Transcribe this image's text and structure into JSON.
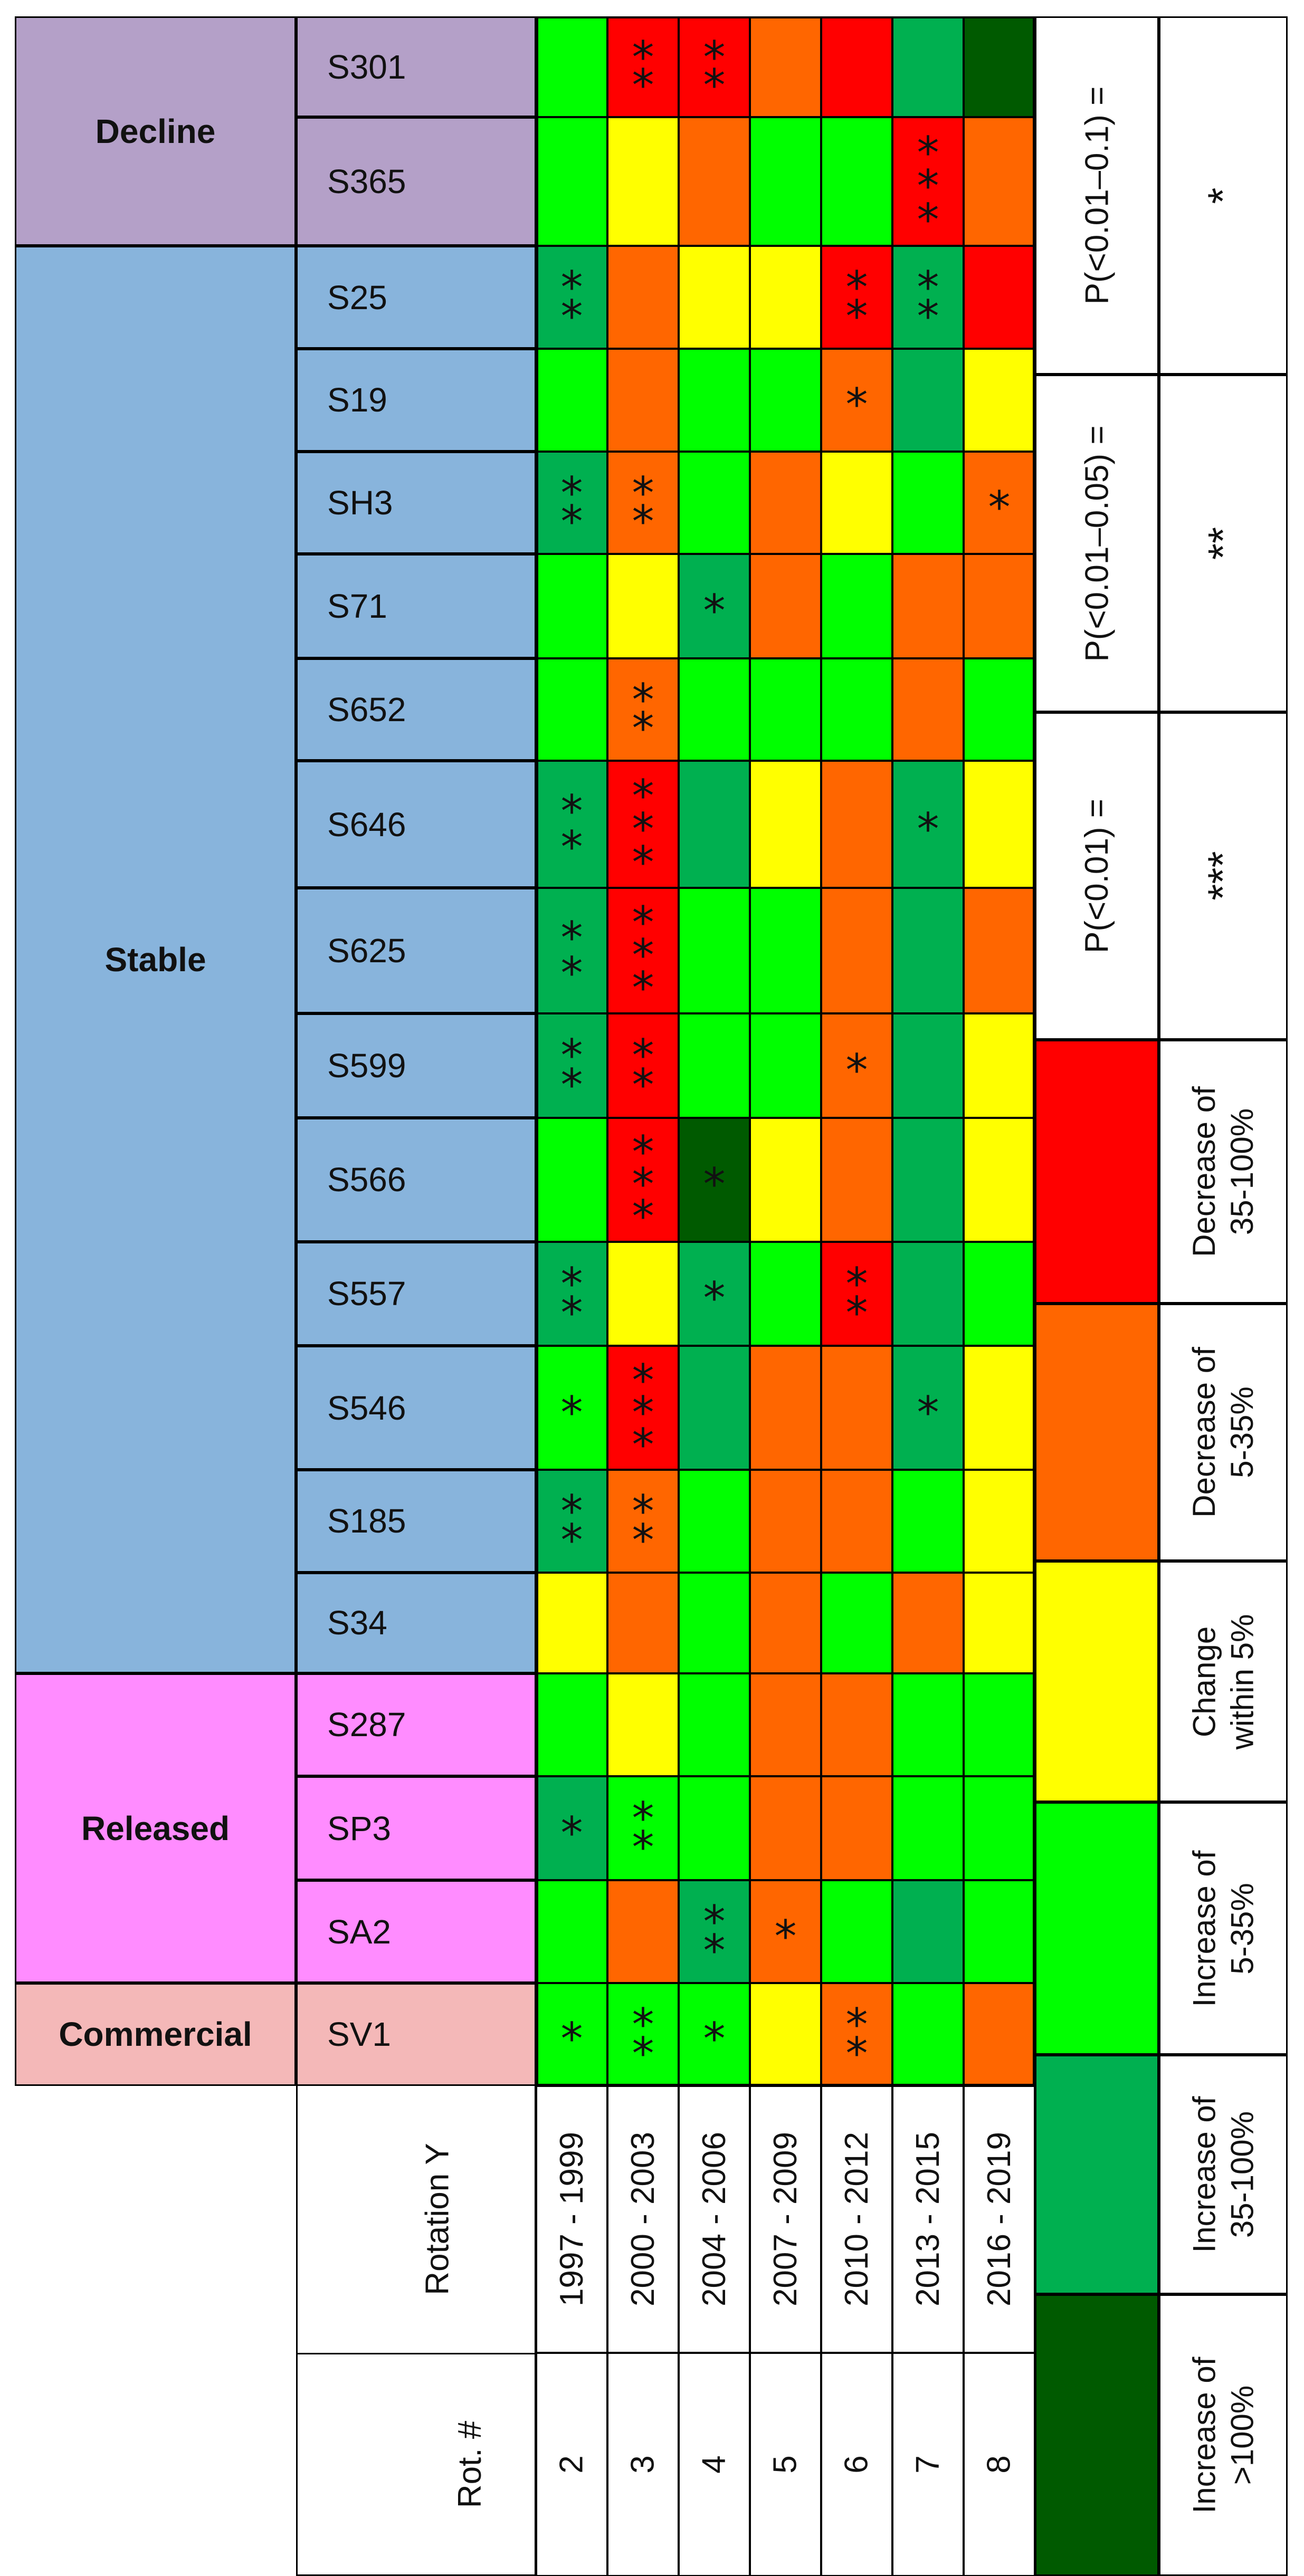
{
  "colors": {
    "large_increase": "#005a00",
    "increase_35_100": "#00b050",
    "increase_5_35": "#00ff00",
    "stable": "#ffff00",
    "decrease_5_35": "#ff6600",
    "decrease_35_100": "#ff0000",
    "decline_band": "#b4a0c8",
    "stable_band": "#88b4dc",
    "released_band": "#ff8cff",
    "commercial_band": "#f4b8b8"
  },
  "chart_data": {
    "type": "heatmap",
    "title": "",
    "categories": [
      {
        "name": "Decline",
        "rows": [
          "S301",
          "S365"
        ],
        "color_key": "decline_band"
      },
      {
        "name": "Stable",
        "rows": [
          "S25",
          "S19",
          "SH3",
          "S71",
          "S652",
          "S646",
          "S625",
          "S599",
          "S566",
          "S557",
          "S546",
          "S185",
          "S34"
        ],
        "color_key": "stable_band"
      },
      {
        "name": "Released",
        "rows": [
          "S287",
          "SP3",
          "SA2"
        ],
        "color_key": "released_band"
      },
      {
        "name": "Commercial",
        "rows": [
          "SV1"
        ],
        "color_key": "commercial_band"
      }
    ],
    "rotation_header": "Rotation Y",
    "rot_number_header": "Rot. #",
    "columns": [
      {
        "rot": "2",
        "years": "1997 - 1999"
      },
      {
        "rot": "3",
        "years": "2000 - 2003"
      },
      {
        "rot": "4",
        "years": "2004 - 2006"
      },
      {
        "rot": "5",
        "years": "2007 - 2009"
      },
      {
        "rot": "6",
        "years": "2010 - 2012"
      },
      {
        "rot": "7",
        "years": "2013 - 2015"
      },
      {
        "rot": "8",
        "years": "2016 - 2019"
      }
    ],
    "rows": [
      {
        "site": "S301",
        "cells": [
          [
            "increase_5_35",
            ""
          ],
          [
            "decrease_35_100",
            "**"
          ],
          [
            "decrease_35_100",
            "**"
          ],
          [
            "decrease_5_35",
            ""
          ],
          [
            "decrease_35_100",
            ""
          ],
          [
            "increase_35_100",
            ""
          ],
          [
            "large_increase",
            ""
          ]
        ]
      },
      {
        "site": "S365",
        "cells": [
          [
            "increase_5_35",
            ""
          ],
          [
            "stable",
            ""
          ],
          [
            "decrease_5_35",
            ""
          ],
          [
            "increase_5_35",
            ""
          ],
          [
            "increase_5_35",
            ""
          ],
          [
            "decrease_35_100",
            "***"
          ],
          [
            "decrease_5_35",
            ""
          ]
        ]
      },
      {
        "site": "S25",
        "cells": [
          [
            "increase_35_100",
            "**"
          ],
          [
            "decrease_5_35",
            ""
          ],
          [
            "stable",
            ""
          ],
          [
            "stable",
            ""
          ],
          [
            "decrease_35_100",
            "**"
          ],
          [
            "increase_35_100",
            "**"
          ],
          [
            "decrease_35_100",
            ""
          ]
        ]
      },
      {
        "site": "S19",
        "cells": [
          [
            "increase_5_35",
            ""
          ],
          [
            "decrease_5_35",
            ""
          ],
          [
            "increase_5_35",
            ""
          ],
          [
            "increase_5_35",
            ""
          ],
          [
            "decrease_5_35",
            "*"
          ],
          [
            "increase_35_100",
            ""
          ],
          [
            "stable",
            ""
          ]
        ]
      },
      {
        "site": "SH3",
        "cells": [
          [
            "increase_35_100",
            "**"
          ],
          [
            "decrease_5_35",
            "**"
          ],
          [
            "increase_5_35",
            ""
          ],
          [
            "decrease_5_35",
            ""
          ],
          [
            "stable",
            ""
          ],
          [
            "increase_5_35",
            ""
          ],
          [
            "decrease_5_35",
            "*"
          ]
        ]
      },
      {
        "site": "S71",
        "cells": [
          [
            "increase_5_35",
            ""
          ],
          [
            "stable",
            ""
          ],
          [
            "increase_35_100",
            "*"
          ],
          [
            "decrease_5_35",
            ""
          ],
          [
            "increase_5_35",
            ""
          ],
          [
            "decrease_5_35",
            ""
          ],
          [
            "decrease_5_35",
            ""
          ]
        ]
      },
      {
        "site": "S652",
        "cells": [
          [
            "increase_5_35",
            ""
          ],
          [
            "decrease_5_35",
            "**"
          ],
          [
            "increase_5_35",
            ""
          ],
          [
            "increase_5_35",
            ""
          ],
          [
            "increase_5_35",
            ""
          ],
          [
            "decrease_5_35",
            ""
          ],
          [
            "increase_5_35",
            ""
          ]
        ]
      },
      {
        "site": "S646",
        "cells": [
          [
            "increase_35_100",
            "**"
          ],
          [
            "decrease_35_100",
            "***"
          ],
          [
            "increase_35_100",
            ""
          ],
          [
            "stable",
            ""
          ],
          [
            "decrease_5_35",
            ""
          ],
          [
            "increase_35_100",
            "*"
          ],
          [
            "stable",
            ""
          ]
        ]
      },
      {
        "site": "S625",
        "cells": [
          [
            "increase_35_100",
            "**"
          ],
          [
            "decrease_35_100",
            "***"
          ],
          [
            "increase_5_35",
            ""
          ],
          [
            "increase_5_35",
            ""
          ],
          [
            "decrease_5_35",
            ""
          ],
          [
            "increase_35_100",
            ""
          ],
          [
            "decrease_5_35",
            ""
          ]
        ]
      },
      {
        "site": "S599",
        "cells": [
          [
            "increase_35_100",
            "**"
          ],
          [
            "decrease_35_100",
            "**"
          ],
          [
            "increase_5_35",
            ""
          ],
          [
            "increase_5_35",
            ""
          ],
          [
            "decrease_5_35",
            "*"
          ],
          [
            "increase_35_100",
            ""
          ],
          [
            "stable",
            ""
          ]
        ]
      },
      {
        "site": "S566",
        "cells": [
          [
            "increase_5_35",
            ""
          ],
          [
            "decrease_35_100",
            "***"
          ],
          [
            "large_increase",
            "*"
          ],
          [
            "stable",
            ""
          ],
          [
            "decrease_5_35",
            ""
          ],
          [
            "increase_35_100",
            ""
          ],
          [
            "stable",
            ""
          ]
        ]
      },
      {
        "site": "S557",
        "cells": [
          [
            "increase_35_100",
            "**"
          ],
          [
            "stable",
            ""
          ],
          [
            "increase_35_100",
            "*"
          ],
          [
            "increase_5_35",
            ""
          ],
          [
            "decrease_35_100",
            "**"
          ],
          [
            "increase_35_100",
            ""
          ],
          [
            "increase_5_35",
            ""
          ]
        ]
      },
      {
        "site": "S546",
        "cells": [
          [
            "increase_5_35",
            "*"
          ],
          [
            "decrease_35_100",
            "***"
          ],
          [
            "increase_35_100",
            ""
          ],
          [
            "decrease_5_35",
            ""
          ],
          [
            "decrease_5_35",
            ""
          ],
          [
            "increase_35_100",
            "*"
          ],
          [
            "stable",
            ""
          ]
        ]
      },
      {
        "site": "S185",
        "cells": [
          [
            "increase_35_100",
            "**"
          ],
          [
            "decrease_5_35",
            "**"
          ],
          [
            "increase_5_35",
            ""
          ],
          [
            "decrease_5_35",
            ""
          ],
          [
            "decrease_5_35",
            ""
          ],
          [
            "increase_5_35",
            ""
          ],
          [
            "stable",
            ""
          ]
        ]
      },
      {
        "site": "S34",
        "cells": [
          [
            "stable",
            ""
          ],
          [
            "decrease_5_35",
            ""
          ],
          [
            "increase_5_35",
            ""
          ],
          [
            "decrease_5_35",
            ""
          ],
          [
            "increase_5_35",
            ""
          ],
          [
            "decrease_5_35",
            ""
          ],
          [
            "stable",
            ""
          ]
        ]
      },
      {
        "site": "S287",
        "cells": [
          [
            "increase_5_35",
            ""
          ],
          [
            "stable",
            ""
          ],
          [
            "increase_5_35",
            ""
          ],
          [
            "decrease_5_35",
            ""
          ],
          [
            "decrease_5_35",
            ""
          ],
          [
            "increase_5_35",
            ""
          ],
          [
            "increase_5_35",
            ""
          ]
        ]
      },
      {
        "site": "SP3",
        "cells": [
          [
            "increase_35_100",
            "*"
          ],
          [
            "increase_5_35",
            "**"
          ],
          [
            "increase_5_35",
            ""
          ],
          [
            "decrease_5_35",
            ""
          ],
          [
            "decrease_5_35",
            ""
          ],
          [
            "increase_5_35",
            ""
          ],
          [
            "increase_5_35",
            ""
          ]
        ]
      },
      {
        "site": "SA2",
        "cells": [
          [
            "increase_5_35",
            ""
          ],
          [
            "decrease_5_35",
            ""
          ],
          [
            "increase_35_100",
            "**"
          ],
          [
            "decrease_5_35",
            "*"
          ],
          [
            "increase_5_35",
            ""
          ],
          [
            "increase_35_100",
            ""
          ],
          [
            "increase_5_35",
            ""
          ]
        ]
      },
      {
        "site": "SV1",
        "cells": [
          [
            "increase_5_35",
            "*"
          ],
          [
            "increase_5_35",
            "**"
          ],
          [
            "increase_5_35",
            "*"
          ],
          [
            "stable",
            ""
          ],
          [
            "decrease_5_35",
            "**"
          ],
          [
            "increase_5_35",
            ""
          ],
          [
            "decrease_5_35",
            ""
          ]
        ]
      }
    ],
    "legend_colors": [
      {
        "color_key": "large_increase",
        "label": "Increase of\n>100%"
      },
      {
        "color_key": "increase_35_100",
        "label": "Increase of\n35-100%"
      },
      {
        "color_key": "increase_5_35",
        "label": "Increase of\n5-35%"
      },
      {
        "color_key": "stable",
        "label": "Change\nwithin 5%"
      },
      {
        "color_key": "decrease_5_35",
        "label": "Decrease of\n5-35%"
      },
      {
        "color_key": "decrease_35_100",
        "label": "Decrease of\n35-100%"
      }
    ],
    "legend_pvalues": [
      {
        "label": "P(<0.01) =",
        "symbol": "***"
      },
      {
        "label": "P(<0.01–0.05) =",
        "symbol": "**"
      },
      {
        "label": "P(<0.01–0.1) =",
        "symbol": "*"
      }
    ]
  }
}
